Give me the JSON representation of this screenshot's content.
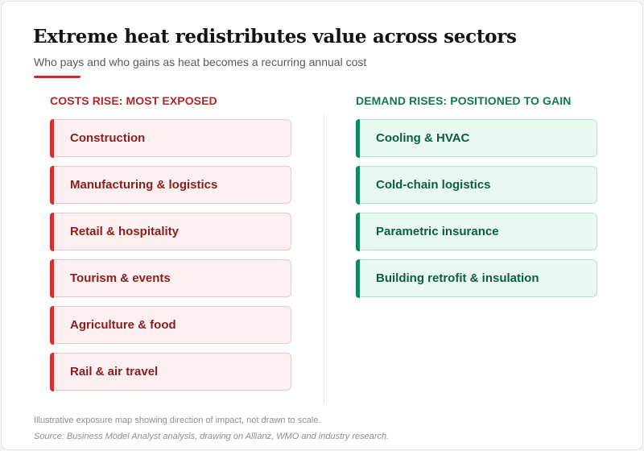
{
  "header": {
    "title": "Extreme heat redistributes value across sectors",
    "subtitle": "Who pays and who gains as heat becomes a recurring annual cost"
  },
  "costs": {
    "heading": "COSTS RISE: MOST EXPOSED",
    "items": [
      "Construction",
      "Manufacturing & logistics",
      "Retail & hospitality",
      "Tourism & events",
      "Agriculture & food",
      "Rail & air travel"
    ]
  },
  "gains": {
    "heading": "DEMAND RISES: POSITIONED TO GAIN",
    "items": [
      "Cooling & HVAC",
      "Cold-chain logistics",
      "Parametric insurance",
      "Building retrofit & insulation"
    ]
  },
  "footer": {
    "note": "Illustrative exposure map showing direction of impact, not drawn to scale.",
    "source": "Source: Business Model Analyst analysis, drawing on Allianz, WMO and industry research."
  },
  "colors": {
    "cost_accent": "#d3302f",
    "gain_accent": "#108a5c"
  }
}
